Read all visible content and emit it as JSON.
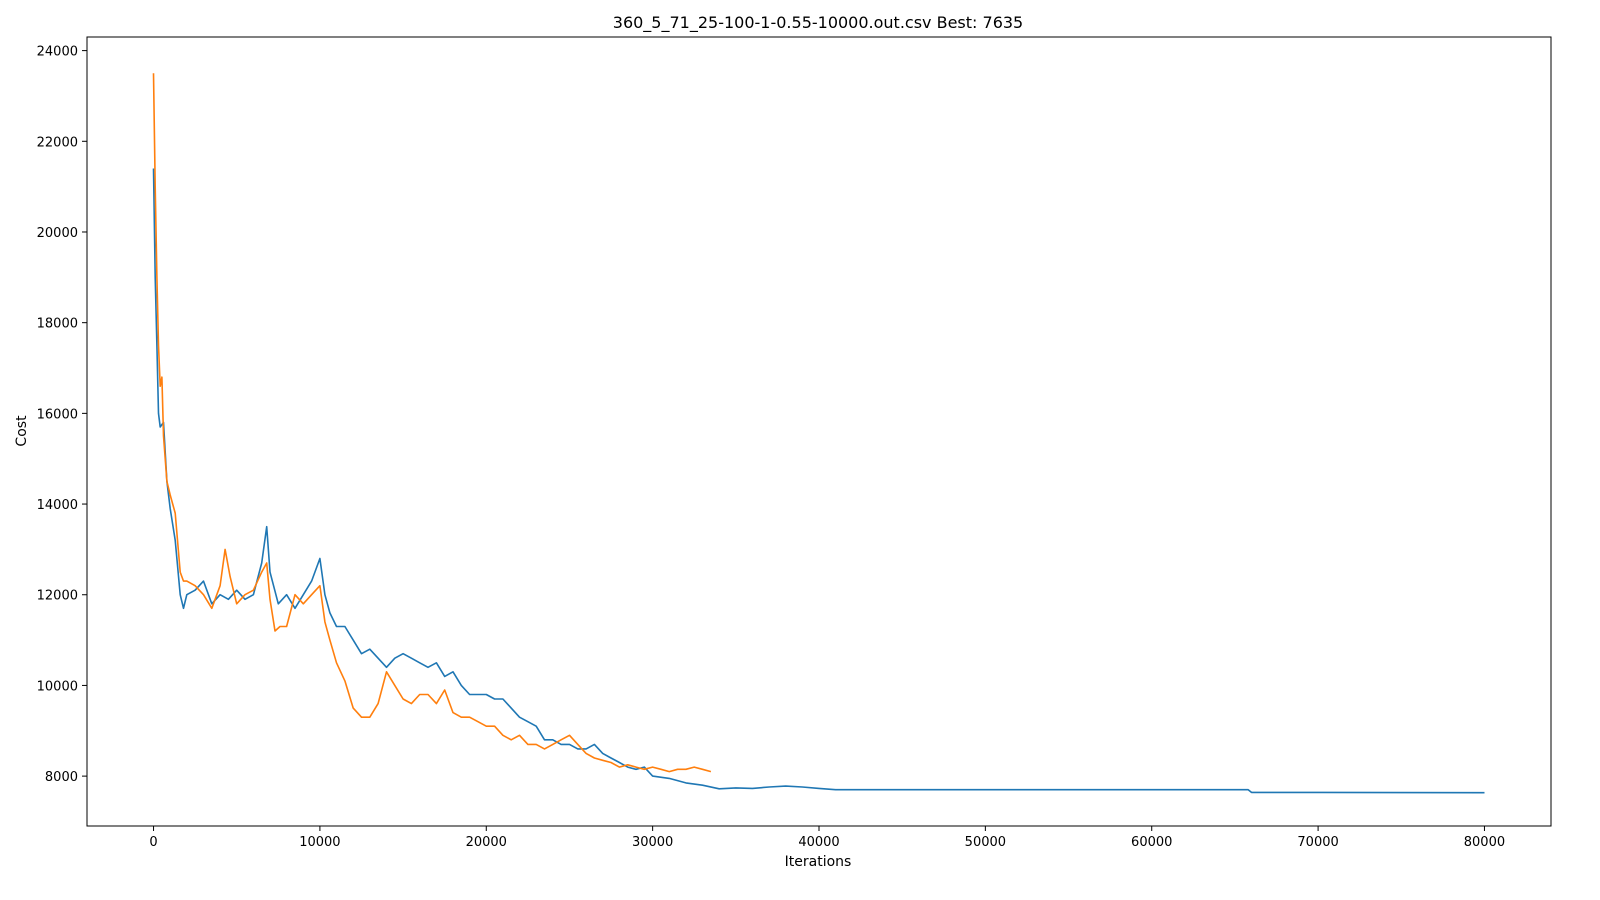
{
  "chart_data": {
    "type": "line",
    "title": "360_5_71_25-100-1-0.55-10000.out.csv Best: 7635",
    "xlabel": "Iterations",
    "ylabel": "Cost",
    "xlim": [
      -4000,
      84000
    ],
    "ylim": [
      6900,
      24300
    ],
    "x_ticks": [
      0,
      10000,
      20000,
      30000,
      40000,
      50000,
      60000,
      70000,
      80000
    ],
    "y_ticks": [
      8000,
      10000,
      12000,
      14000,
      16000,
      18000,
      20000,
      22000,
      24000
    ],
    "grid": false,
    "legend": false,
    "colors": [
      "#1f77b4",
      "#ff7f0e"
    ],
    "series": [
      {
        "x": [
          0,
          100,
          200,
          300,
          400,
          600,
          800,
          1000,
          1300,
          1600,
          1800,
          2000,
          2500,
          3000,
          3500,
          4000,
          4500,
          5000,
          5500,
          6000,
          6500,
          6800,
          7000,
          7500,
          8000,
          8500,
          9000,
          9500,
          10000,
          10300,
          10600,
          11000,
          11500,
          12000,
          12500,
          13000,
          13500,
          14000,
          14500,
          15000,
          15500,
          16000,
          16500,
          17000,
          17500,
          18000,
          18500,
          19000,
          19500,
          20000,
          20500,
          21000,
          21500,
          22000,
          22500,
          23000,
          23500,
          24000,
          24500,
          25000,
          25500,
          26000,
          26500,
          27000,
          27500,
          28000,
          28500,
          29000,
          29500,
          30000,
          31000,
          32000,
          33000,
          34000,
          35000,
          36000,
          37000,
          38000,
          39000,
          40000,
          41000,
          50000,
          60000,
          65800,
          66000,
          70000,
          80000
        ],
        "values": [
          21400,
          19000,
          17500,
          16000,
          15700,
          15800,
          14500,
          13900,
          13200,
          12000,
          11700,
          12000,
          12100,
          12300,
          11800,
          12000,
          11900,
          12100,
          11900,
          12000,
          12700,
          13500,
          12500,
          11800,
          12000,
          11700,
          12000,
          12300,
          12800,
          12000,
          11600,
          11300,
          11300,
          11000,
          10700,
          10800,
          10600,
          10400,
          10600,
          10700,
          10600,
          10500,
          10400,
          10500,
          10200,
          10300,
          10000,
          9800,
          9800,
          9800,
          9700,
          9700,
          9500,
          9300,
          9200,
          9100,
          8800,
          8800,
          8700,
          8700,
          8600,
          8600,
          8700,
          8500,
          8400,
          8300,
          8200,
          8150,
          8200,
          8000,
          7950,
          7850,
          7800,
          7720,
          7740,
          7730,
          7760,
          7780,
          7760,
          7730,
          7700,
          7700,
          7700,
          7700,
          7640,
          7640,
          7635
        ]
      },
      {
        "x": [
          0,
          100,
          200,
          300,
          400,
          500,
          600,
          800,
          1000,
          1300,
          1600,
          1800,
          2000,
          2500,
          3000,
          3500,
          4000,
          4300,
          4600,
          5000,
          5500,
          6000,
          6500,
          6800,
          7000,
          7300,
          7600,
          8000,
          8500,
          9000,
          9500,
          10000,
          10300,
          10600,
          11000,
          11500,
          12000,
          12500,
          13000,
          13500,
          14000,
          14500,
          15000,
          15500,
          16000,
          16500,
          17000,
          17500,
          18000,
          18500,
          19000,
          19500,
          20000,
          20500,
          21000,
          21500,
          22000,
          22500,
          23000,
          23500,
          24000,
          24500,
          25000,
          25500,
          26000,
          26500,
          27000,
          27500,
          28000,
          28500,
          29000,
          29500,
          30000,
          30500,
          31000,
          31500,
          32000,
          32500,
          33000,
          33500
        ],
        "values": [
          23500,
          21000,
          19000,
          17500,
          16600,
          16800,
          15500,
          14500,
          14200,
          13800,
          12500,
          12300,
          12300,
          12200,
          12000,
          11700,
          12200,
          13000,
          12400,
          11800,
          12000,
          12100,
          12500,
          12700,
          11900,
          11200,
          11300,
          11300,
          12000,
          11800,
          12000,
          12200,
          11400,
          11000,
          10500,
          10100,
          9500,
          9300,
          9300,
          9600,
          10300,
          10000,
          9700,
          9600,
          9800,
          9800,
          9600,
          9900,
          9400,
          9300,
          9300,
          9200,
          9100,
          9100,
          8900,
          8800,
          8900,
          8700,
          8700,
          8600,
          8700,
          8800,
          8900,
          8700,
          8500,
          8400,
          8350,
          8300,
          8200,
          8250,
          8200,
          8150,
          8200,
          8150,
          8100,
          8150,
          8150,
          8200,
          8150,
          8100
        ]
      }
    ]
  }
}
